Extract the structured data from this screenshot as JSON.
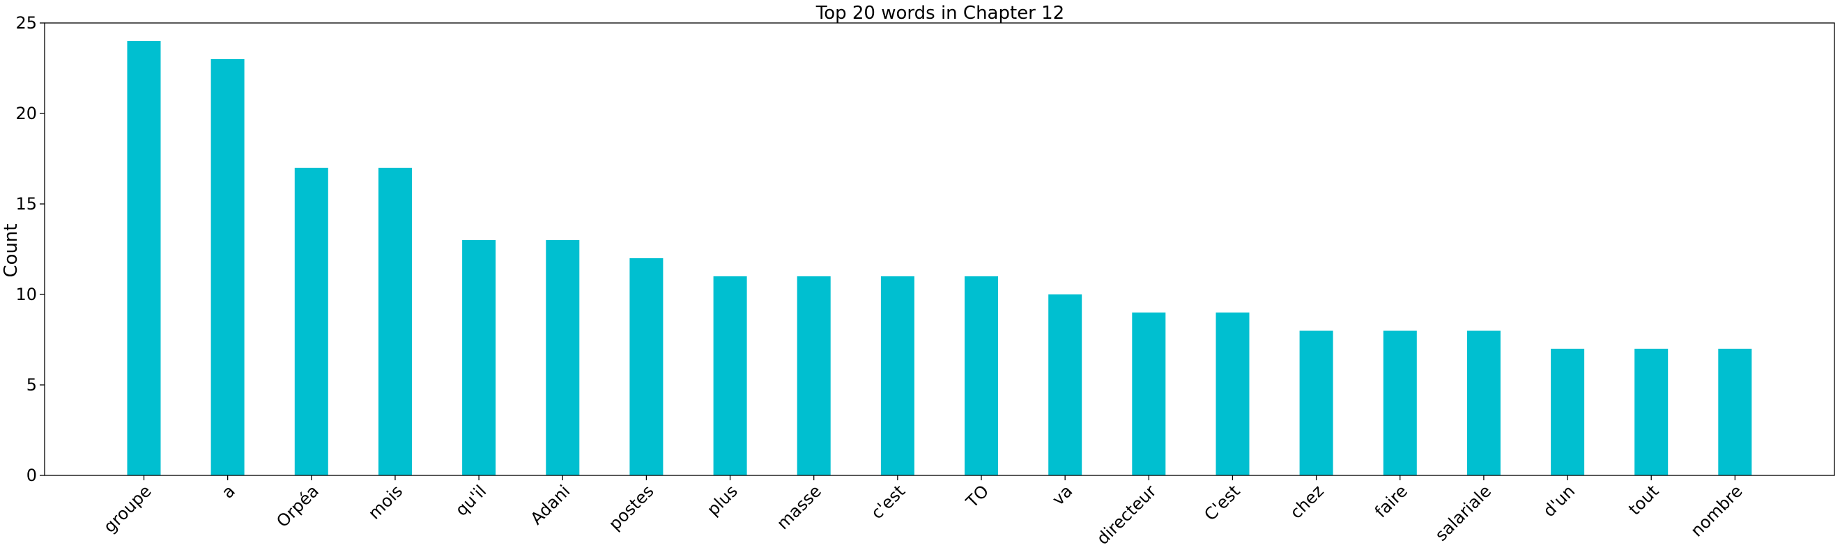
{
  "chart_data": {
    "type": "bar",
    "title": "Top 20 words in Chapter 12",
    "xlabel": "",
    "ylabel": "Count",
    "ylim": [
      0,
      25
    ],
    "yticks": [
      0,
      5,
      10,
      15,
      20,
      25
    ],
    "grid": false,
    "categories": [
      "groupe",
      "a",
      "Orpéa",
      "mois",
      "qu'il",
      "Adani",
      "postes",
      "plus",
      "masse",
      "c'est",
      "TO",
      "va",
      "directeur",
      "C'est",
      "chez",
      "faire",
      "salariale",
      "d'un",
      "tout",
      "nombre"
    ],
    "values": [
      24,
      23,
      17,
      17,
      13,
      13,
      12,
      11,
      11,
      11,
      11,
      10,
      9,
      9,
      8,
      8,
      8,
      7,
      7,
      7
    ],
    "bar_color": "#00BFD0",
    "x_tick_rotation": 45
  }
}
